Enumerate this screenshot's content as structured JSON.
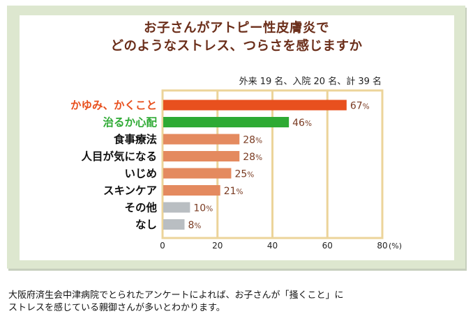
{
  "chart_data": {
    "type": "bar",
    "orientation": "horizontal",
    "title": [
      "お子さんがアトピー性皮膚炎で",
      "どのようなストレス、つらさを感じますか"
    ],
    "note": "外来 19 名、入院 20 名、計 39 名",
    "categories": [
      "かゆみ、かくこと",
      "治るか心配",
      "食事療法",
      "人目が気になる",
      "いじめ",
      "スキンケア",
      "その他",
      "なし"
    ],
    "values": [
      67,
      46,
      28,
      28,
      25,
      21,
      10,
      8
    ],
    "value_unit": "%",
    "xlim": [
      0,
      80
    ],
    "xticks": [
      0,
      20,
      40,
      60,
      80
    ],
    "xunit": "(%)",
    "grid": true,
    "colors": {
      "highlight": "#e8501e",
      "positive": "#2eaa34",
      "normal": "#e48a5f",
      "other": "#b9bec2",
      "gridline": "#ecd49a",
      "label_highlight": "#e8501e",
      "label_positive": "#2eaa34",
      "value_text": "#7a3b22"
    },
    "bar_styles": [
      "highlight",
      "positive",
      "normal",
      "normal",
      "normal",
      "normal",
      "other",
      "other"
    ]
  },
  "footnote": [
    "大阪府済生会中津病院でとられたアンケートによれば、お子さんが「掻くこと」に",
    "ストレスを感じている親御さんが多いとわかります。"
  ]
}
